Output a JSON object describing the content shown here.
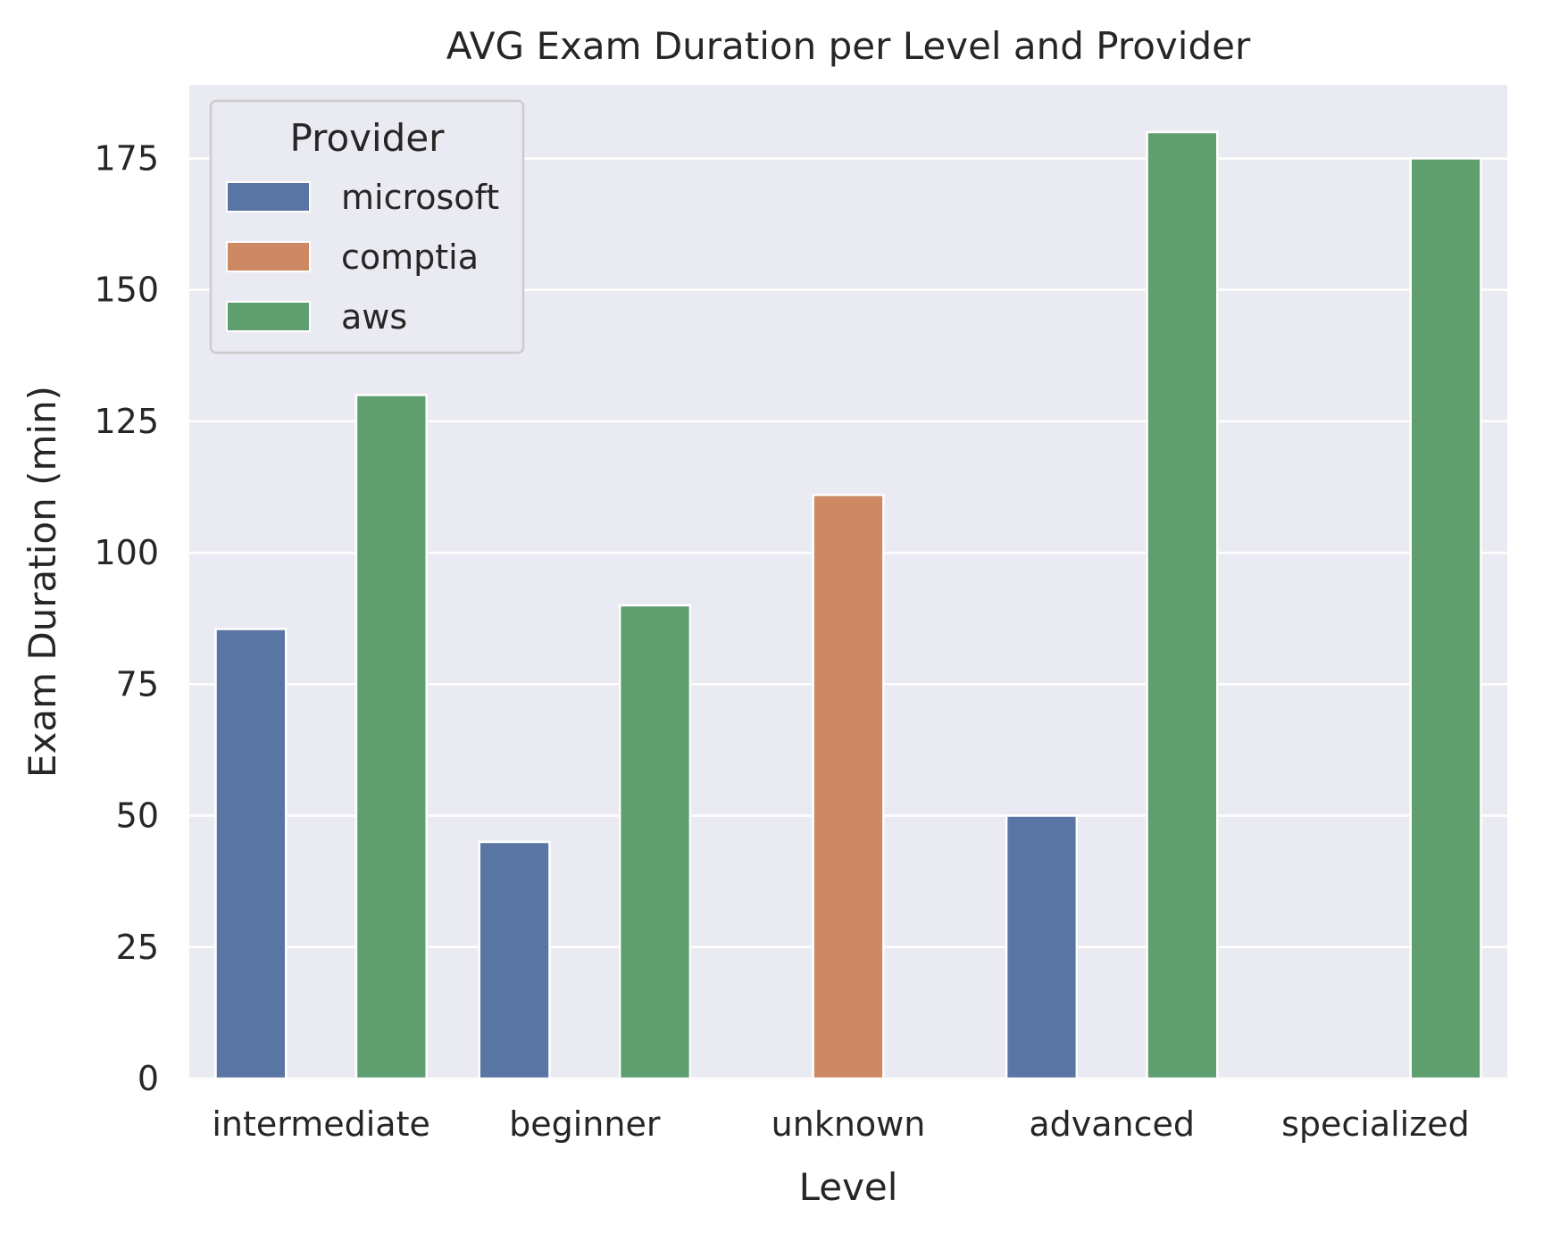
{
  "chart_data": {
    "type": "bar",
    "title": "AVG Exam Duration per Level and Provider",
    "xlabel": "Level",
    "ylabel": "Exam Duration (min)",
    "categories": [
      "intermediate",
      "beginner",
      "unknown",
      "advanced",
      "specialized"
    ],
    "ylim": [
      0,
      189
    ],
    "yticks": [
      0,
      25,
      50,
      75,
      100,
      125,
      150,
      175
    ],
    "grid": true,
    "legend": {
      "title": "Provider",
      "placement": "top-left"
    },
    "series": [
      {
        "name": "microsoft",
        "color": "#5975a4",
        "values": [
          85.5,
          45,
          null,
          50,
          null
        ]
      },
      {
        "name": "comptia",
        "color": "#cc8963",
        "values": [
          null,
          null,
          111,
          null,
          null
        ]
      },
      {
        "name": "aws",
        "color": "#5f9e6e",
        "values": [
          130,
          90,
          null,
          180,
          175
        ]
      }
    ],
    "colors": {
      "plot_background": "#eaeaf2",
      "grid": "#ffffff"
    }
  }
}
